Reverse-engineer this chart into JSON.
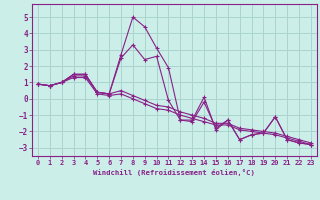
{
  "background_color": "#cceee8",
  "grid_color": "#aad4ce",
  "line_color": "#882288",
  "xlabel": "Windchill (Refroidissement éolien,°C)",
  "xlim": [
    -0.5,
    23.5
  ],
  "ylim": [
    -3.5,
    5.8
  ],
  "yticks": [
    -3,
    -2,
    -1,
    0,
    1,
    2,
    3,
    4,
    5
  ],
  "xticks": [
    0,
    1,
    2,
    3,
    4,
    5,
    6,
    7,
    8,
    9,
    10,
    11,
    12,
    13,
    14,
    15,
    16,
    17,
    18,
    19,
    20,
    21,
    22,
    23
  ],
  "series": [
    [
      0.9,
      0.8,
      1.0,
      1.5,
      1.5,
      0.4,
      0.3,
      2.7,
      5.0,
      4.4,
      3.1,
      1.9,
      -1.3,
      -1.3,
      0.1,
      -1.9,
      -1.3,
      -2.5,
      -2.2,
      -2.1,
      -1.1,
      -2.5,
      -2.7,
      -2.8
    ],
    [
      0.9,
      0.8,
      1.0,
      1.5,
      1.5,
      0.4,
      0.3,
      2.5,
      3.3,
      2.4,
      2.6,
      -0.1,
      -1.3,
      -1.4,
      -0.2,
      -1.8,
      -1.3,
      -2.5,
      -2.2,
      -2.1,
      -1.1,
      -2.5,
      -2.7,
      -2.8
    ],
    [
      0.9,
      0.8,
      1.0,
      1.4,
      1.4,
      0.4,
      0.3,
      0.5,
      0.2,
      -0.1,
      -0.4,
      -0.5,
      -0.8,
      -1.0,
      -1.2,
      -1.5,
      -1.5,
      -1.8,
      -1.9,
      -2.0,
      -2.1,
      -2.3,
      -2.5,
      -2.7
    ],
    [
      0.9,
      0.8,
      1.0,
      1.3,
      1.3,
      0.3,
      0.2,
      0.3,
      0.0,
      -0.3,
      -0.6,
      -0.7,
      -1.0,
      -1.2,
      -1.4,
      -1.6,
      -1.6,
      -1.9,
      -2.0,
      -2.1,
      -2.2,
      -2.4,
      -2.6,
      -2.8
    ]
  ]
}
